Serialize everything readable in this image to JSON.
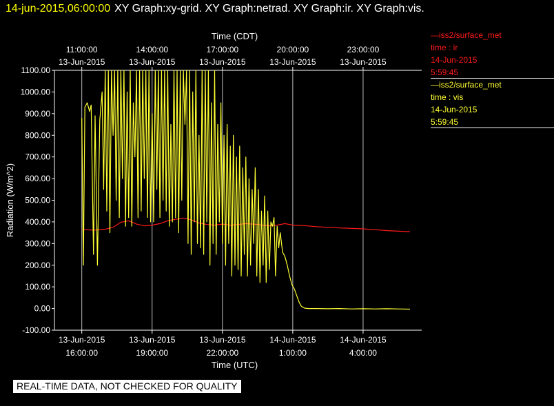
{
  "header": {
    "timestamp": "14-jun-2015,06:00:00",
    "graphs": "XY Graph:xy-grid.  XY Graph:netrad.  XY Graph:ir.  XY Graph:vis."
  },
  "legend": [
    {
      "series": "iss2/surface_met",
      "var": "time : ir",
      "date": "14-Jun-2015",
      "time": "5:59:45",
      "color": "#ff1a1a"
    },
    {
      "series": "iss2/surface_met",
      "var": "time : vis",
      "date": "14-Jun-2015",
      "time": "5:59:45",
      "color": "#ffff33"
    }
  ],
  "notice": "REAL-TIME DATA, NOT CHECKED FOR QUALITY",
  "chart_data": {
    "type": "line",
    "title": "",
    "xlabel_bottom": "Time (UTC)",
    "xlabel_top": "Time (CDT)",
    "ylabel": "Radiation (W/m^2)",
    "ylim": [
      -100,
      1100
    ],
    "y_ticks": [
      "1100.00",
      "1000.00",
      "900.00",
      "800.00",
      "700.00",
      "600.00",
      "500.00",
      "400.00",
      "300.00",
      "200.00",
      "100.00",
      "0.00",
      "-100.00"
    ],
    "x_ticks_bottom": [
      {
        "t": "2015-06-13T16:00Z",
        "l1": "13-Jun-2015",
        "l2": "16:00:00"
      },
      {
        "t": "2015-06-13T19:00Z",
        "l1": "13-Jun-2015",
        "l2": "19:00:00"
      },
      {
        "t": "2015-06-13T22:00Z",
        "l1": "13-Jun-2015",
        "l2": "22:00:00"
      },
      {
        "t": "2015-06-14T01:00Z",
        "l1": "14-Jun-2015",
        "l2": "1:00:00"
      },
      {
        "t": "2015-06-14T04:00Z",
        "l1": "14-Jun-2015",
        "l2": "4:00:00"
      }
    ],
    "x_ticks_top": [
      {
        "t": "2015-06-13T16:00Z",
        "l1": "11:00:00",
        "l2": "13-Jun-2015"
      },
      {
        "t": "2015-06-13T19:00Z",
        "l1": "14:00:00",
        "l2": "13-Jun-2015"
      },
      {
        "t": "2015-06-13T22:00Z",
        "l1": "17:00:00",
        "l2": "13-Jun-2015"
      },
      {
        "t": "2015-06-14T01:00Z",
        "l1": "20:00:00",
        "l2": "13-Jun-2015"
      },
      {
        "t": "2015-06-14T04:00Z",
        "l1": "23:00:00",
        "l2": "13-Jun-2015"
      }
    ],
    "grid": true,
    "series": [
      {
        "color": "#ff1a1a",
        "points": [
          [
            "2015-06-13T16:00Z",
            365
          ],
          [
            "2015-06-13T16:30Z",
            362
          ],
          [
            "2015-06-13T17:00Z",
            366
          ],
          [
            "2015-06-13T17:20Z",
            375
          ],
          [
            "2015-06-13T17:40Z",
            398
          ],
          [
            "2015-06-13T18:00Z",
            405
          ],
          [
            "2015-06-13T18:20Z",
            390
          ],
          [
            "2015-06-13T18:40Z",
            382
          ],
          [
            "2015-06-13T19:00Z",
            385
          ],
          [
            "2015-06-13T19:20Z",
            392
          ],
          [
            "2015-06-13T19:40Z",
            405
          ],
          [
            "2015-06-13T20:00Z",
            412
          ],
          [
            "2015-06-13T20:20Z",
            418
          ],
          [
            "2015-06-13T20:40Z",
            410
          ],
          [
            "2015-06-13T21:00Z",
            395
          ],
          [
            "2015-06-13T21:20Z",
            388
          ],
          [
            "2015-06-13T21:40Z",
            385
          ],
          [
            "2015-06-13T22:00Z",
            390
          ],
          [
            "2015-06-13T22:20Z",
            385
          ],
          [
            "2015-06-13T22:40Z",
            388
          ],
          [
            "2015-06-13T23:00Z",
            392
          ],
          [
            "2015-06-13T23:30Z",
            388
          ],
          [
            "2015-06-14T00:00Z",
            382
          ],
          [
            "2015-06-14T00:20Z",
            385
          ],
          [
            "2015-06-14T00:40Z",
            392
          ],
          [
            "2015-06-14T01:00Z",
            385
          ],
          [
            "2015-06-14T01:30Z",
            383
          ],
          [
            "2015-06-14T02:00Z",
            378
          ],
          [
            "2015-06-14T02:30Z",
            375
          ],
          [
            "2015-06-14T03:00Z",
            372
          ],
          [
            "2015-06-14T03:30Z",
            370
          ],
          [
            "2015-06-14T04:00Z",
            368
          ],
          [
            "2015-06-14T04:30Z",
            364
          ],
          [
            "2015-06-14T05:00Z",
            360
          ],
          [
            "2015-06-14T05:30Z",
            357
          ],
          [
            "2015-06-14T06:00Z",
            355
          ]
        ]
      },
      {
        "color": "#ffff33",
        "points": [
          [
            "2015-06-13T16:00Z",
            880
          ],
          [
            "2015-06-13T16:04Z",
            200
          ],
          [
            "2015-06-13T16:08Z",
            930
          ],
          [
            "2015-06-13T16:14Z",
            950
          ],
          [
            "2015-06-13T16:20Z",
            910
          ],
          [
            "2015-06-13T16:24Z",
            940
          ],
          [
            "2015-06-13T16:30Z",
            250
          ],
          [
            "2015-06-13T16:34Z",
            890
          ],
          [
            "2015-06-13T16:40Z",
            200
          ],
          [
            "2015-06-13T16:46Z",
            870
          ],
          [
            "2015-06-13T16:52Z",
            1000
          ],
          [
            "2015-06-13T16:56Z",
            550
          ],
          [
            "2015-06-13T17:00Z",
            1100
          ],
          [
            "2015-06-13T17:04Z",
            450
          ],
          [
            "2015-06-13T17:08Z",
            1100
          ],
          [
            "2015-06-13T17:12Z",
            350
          ],
          [
            "2015-06-13T17:16Z",
            1100
          ],
          [
            "2015-06-13T17:20Z",
            800
          ],
          [
            "2015-06-13T17:24Z",
            1100
          ],
          [
            "2015-06-13T17:28Z",
            500
          ],
          [
            "2015-06-13T17:32Z",
            1100
          ],
          [
            "2015-06-13T17:36Z",
            420
          ],
          [
            "2015-06-13T17:40Z",
            1100
          ],
          [
            "2015-06-13T17:44Z",
            600
          ],
          [
            "2015-06-13T17:48Z",
            1100
          ],
          [
            "2015-06-13T17:52Z",
            380
          ],
          [
            "2015-06-13T17:56Z",
            1000
          ],
          [
            "2015-06-13T18:00Z",
            420
          ],
          [
            "2015-06-13T18:04Z",
            1100
          ],
          [
            "2015-06-13T18:08Z",
            380
          ],
          [
            "2015-06-13T18:12Z",
            950
          ],
          [
            "2015-06-13T18:16Z",
            700
          ],
          [
            "2015-06-13T18:20Z",
            1100
          ],
          [
            "2015-06-13T18:24Z",
            420
          ],
          [
            "2015-06-13T18:28Z",
            1100
          ],
          [
            "2015-06-13T18:32Z",
            450
          ],
          [
            "2015-06-13T18:36Z",
            1100
          ],
          [
            "2015-06-13T18:40Z",
            600
          ],
          [
            "2015-06-13T18:44Z",
            1100
          ],
          [
            "2015-06-13T18:48Z",
            420
          ],
          [
            "2015-06-13T18:52Z",
            1100
          ],
          [
            "2015-06-13T18:56Z",
            400
          ],
          [
            "2015-06-13T19:00Z",
            900
          ],
          [
            "2015-06-13T19:04Z",
            400
          ],
          [
            "2015-06-13T19:08Z",
            1100
          ],
          [
            "2015-06-13T19:12Z",
            550
          ],
          [
            "2015-06-13T19:16Z",
            1100
          ],
          [
            "2015-06-13T19:20Z",
            420
          ],
          [
            "2015-06-13T19:24Z",
            1100
          ],
          [
            "2015-06-13T19:28Z",
            500
          ],
          [
            "2015-06-13T19:32Z",
            1100
          ],
          [
            "2015-06-13T19:36Z",
            450
          ],
          [
            "2015-06-13T19:40Z",
            1100
          ],
          [
            "2015-06-13T19:44Z",
            380
          ],
          [
            "2015-06-13T19:48Z",
            850
          ],
          [
            "2015-06-13T19:52Z",
            400
          ],
          [
            "2015-06-13T19:56Z",
            1100
          ],
          [
            "2015-06-13T20:00Z",
            420
          ],
          [
            "2015-06-13T20:04Z",
            1100
          ],
          [
            "2015-06-13T20:08Z",
            350
          ],
          [
            "2015-06-13T20:12Z",
            1100
          ],
          [
            "2015-06-13T20:16Z",
            500
          ],
          [
            "2015-06-13T20:20Z",
            1100
          ],
          [
            "2015-06-13T20:24Z",
            850
          ],
          [
            "2015-06-13T20:28Z",
            1100
          ],
          [
            "2015-06-13T20:32Z",
            300
          ],
          [
            "2015-06-13T20:36Z",
            1100
          ],
          [
            "2015-06-13T20:40Z",
            250
          ],
          [
            "2015-06-13T20:44Z",
            1000
          ],
          [
            "2015-06-13T20:48Z",
            400
          ],
          [
            "2015-06-13T20:52Z",
            1100
          ],
          [
            "2015-06-13T20:56Z",
            300
          ],
          [
            "2015-06-13T21:00Z",
            800
          ],
          [
            "2015-06-13T21:04Z",
            280
          ],
          [
            "2015-06-13T21:08Z",
            1100
          ],
          [
            "2015-06-13T21:12Z",
            250
          ],
          [
            "2015-06-13T21:16Z",
            1100
          ],
          [
            "2015-06-13T21:20Z",
            400
          ],
          [
            "2015-06-13T21:24Z",
            1100
          ],
          [
            "2015-06-13T21:28Z",
            200
          ],
          [
            "2015-06-13T21:32Z",
            950
          ],
          [
            "2015-06-13T21:36Z",
            300
          ],
          [
            "2015-06-13T21:40Z",
            1100
          ],
          [
            "2015-06-13T21:44Z",
            250
          ],
          [
            "2015-06-13T21:48Z",
            850
          ],
          [
            "2015-06-13T21:52Z",
            400
          ],
          [
            "2015-06-13T21:56Z",
            950
          ],
          [
            "2015-06-13T22:00Z",
            300
          ],
          [
            "2015-06-13T22:04Z",
            800
          ],
          [
            "2015-06-13T22:08Z",
            200
          ],
          [
            "2015-06-13T22:12Z",
            850
          ],
          [
            "2015-06-13T22:16Z",
            300
          ],
          [
            "2015-06-13T22:20Z",
            750
          ],
          [
            "2015-06-13T22:24Z",
            150
          ],
          [
            "2015-06-13T22:28Z",
            800
          ],
          [
            "2015-06-13T22:32Z",
            200
          ],
          [
            "2015-06-13T22:36Z",
            700
          ],
          [
            "2015-06-13T22:40Z",
            180
          ],
          [
            "2015-06-13T22:44Z",
            750
          ],
          [
            "2015-06-13T22:48Z",
            150
          ],
          [
            "2015-06-13T22:52Z",
            650
          ],
          [
            "2015-06-13T22:56Z",
            250
          ],
          [
            "2015-06-13T23:00Z",
            700
          ],
          [
            "2015-06-13T23:04Z",
            150
          ],
          [
            "2015-06-13T23:08Z",
            600
          ],
          [
            "2015-06-13T23:12Z",
            200
          ],
          [
            "2015-06-13T23:16Z",
            550
          ],
          [
            "2015-06-13T23:20Z",
            300
          ],
          [
            "2015-06-13T23:24Z",
            650
          ],
          [
            "2015-06-13T23:28Z",
            150
          ],
          [
            "2015-06-13T23:32Z",
            550
          ],
          [
            "2015-06-13T23:36Z",
            120
          ],
          [
            "2015-06-13T23:40Z",
            450
          ],
          [
            "2015-06-13T23:44Z",
            200
          ],
          [
            "2015-06-13T23:48Z",
            520
          ],
          [
            "2015-06-13T23:52Z",
            120
          ],
          [
            "2015-06-13T23:56Z",
            450
          ],
          [
            "2015-06-14T00:00Z",
            180
          ],
          [
            "2015-06-14T00:04Z",
            400
          ],
          [
            "2015-06-14T00:08Z",
            380
          ],
          [
            "2015-06-14T00:12Z",
            420
          ],
          [
            "2015-06-14T00:16Z",
            150
          ],
          [
            "2015-06-14T00:20Z",
            380
          ],
          [
            "2015-06-14T00:24Z",
            280
          ],
          [
            "2015-06-14T00:28Z",
            350
          ],
          [
            "2015-06-14T00:34Z",
            260
          ],
          [
            "2015-06-14T00:40Z",
            240
          ],
          [
            "2015-06-14T00:46Z",
            200
          ],
          [
            "2015-06-14T00:52Z",
            150
          ],
          [
            "2015-06-14T00:58Z",
            110
          ],
          [
            "2015-06-14T01:04Z",
            90
          ],
          [
            "2015-06-14T01:10Z",
            60
          ],
          [
            "2015-06-14T01:16Z",
            30
          ],
          [
            "2015-06-14T01:22Z",
            10
          ],
          [
            "2015-06-14T01:30Z",
            2
          ],
          [
            "2015-06-14T01:40Z",
            0
          ],
          [
            "2015-06-14T02:00Z",
            0
          ],
          [
            "2015-06-14T02:30Z",
            -1
          ],
          [
            "2015-06-14T03:00Z",
            0
          ],
          [
            "2015-06-14T03:30Z",
            -2
          ],
          [
            "2015-06-14T04:00Z",
            -1
          ],
          [
            "2015-06-14T04:30Z",
            -2
          ],
          [
            "2015-06-14T05:00Z",
            -1
          ],
          [
            "2015-06-14T05:30Z",
            -2
          ],
          [
            "2015-06-14T06:00Z",
            -3
          ]
        ]
      }
    ]
  }
}
